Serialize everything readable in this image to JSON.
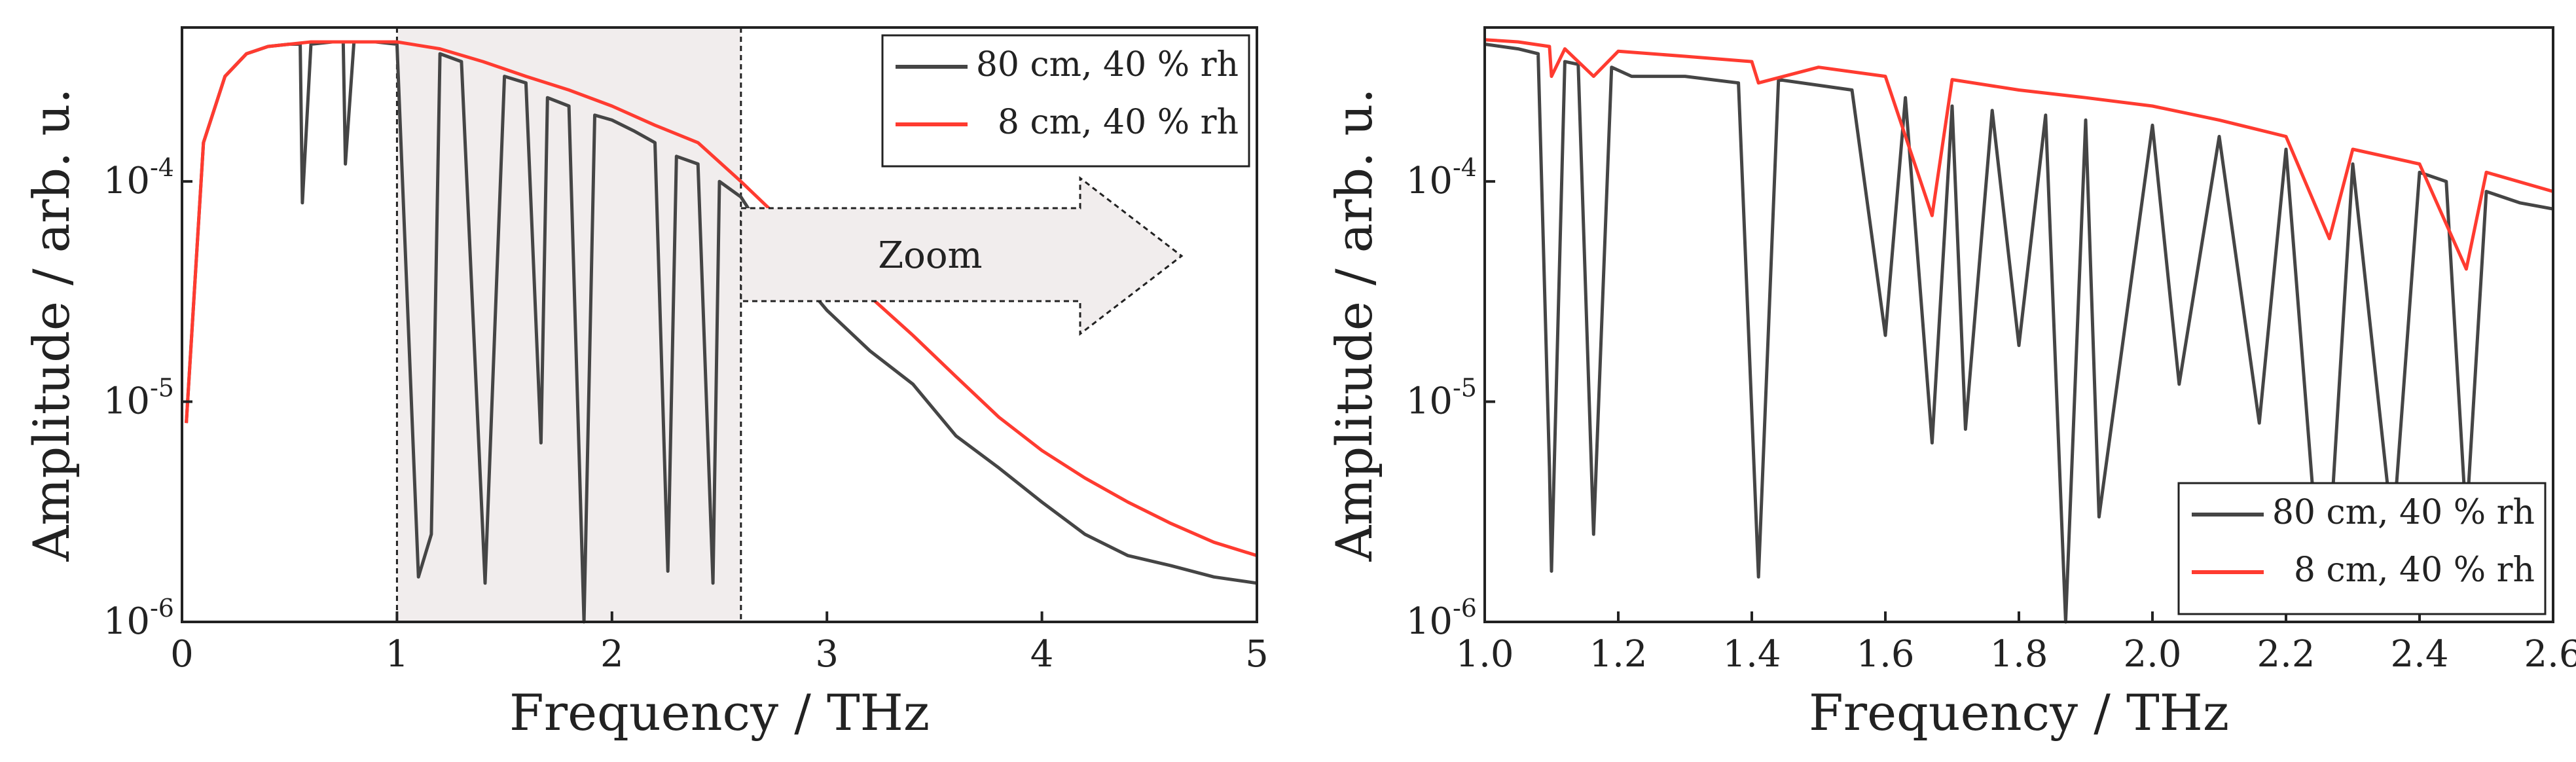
{
  "figure": {
    "zoom_label": "Zoom",
    "colors": {
      "dark": "#454545",
      "red": "#ff3b30",
      "shade": "#f1eded",
      "axis": "#222222"
    }
  },
  "chart_data": [
    {
      "type": "line",
      "panel": "left",
      "xlabel": "Frequency / THz",
      "ylabel": "Amplitude / arb. u.",
      "xlim": [
        0,
        5
      ],
      "ylim": [
        1e-06,
        0.0005
      ],
      "yscale": "log",
      "x_ticks": [
        "0",
        "1",
        "2",
        "3",
        "4",
        "5"
      ],
      "y_ticks": [
        {
          "base": "10",
          "exp": "-6"
        },
        {
          "base": "10",
          "exp": "-5"
        },
        {
          "base": "10",
          "exp": "-4"
        }
      ],
      "legend": {
        "position": "top-right",
        "entries": [
          "80 cm, 40 % rh",
          "8 cm, 40 % rh"
        ]
      },
      "annotation": {
        "text": "Zoom",
        "shaded_region": [
          1.0,
          2.6
        ]
      },
      "series": [
        {
          "name": "80 cm, 40 % rh",
          "color": "#454545",
          "x": [
            0.02,
            0.1,
            0.2,
            0.3,
            0.4,
            0.5,
            0.55,
            0.56,
            0.6,
            0.7,
            0.75,
            0.76,
            0.8,
            0.9,
            1.0,
            1.1,
            1.16,
            1.2,
            1.3,
            1.41,
            1.5,
            1.6,
            1.67,
            1.7,
            1.8,
            1.87,
            1.92,
            2.0,
            2.1,
            2.2,
            2.26,
            2.3,
            2.4,
            2.47,
            2.5,
            2.6,
            2.7,
            2.8,
            2.9,
            3.0,
            3.2,
            3.4,
            3.6,
            3.8,
            4.0,
            4.2,
            4.4,
            4.6,
            4.8,
            5.0
          ],
          "y": [
            8e-06,
            0.00015,
            0.0003,
            0.00038,
            0.00041,
            0.00042,
            0.00042,
            8e-05,
            0.00042,
            0.00043,
            0.00043,
            0.00012,
            0.00043,
            0.00043,
            0.00042,
            1.6e-06,
            2.5e-06,
            0.00038,
            0.00035,
            1.5e-06,
            0.0003,
            0.00028,
            6.5e-06,
            0.00024,
            0.00022,
            1e-06,
            0.0002,
            0.00019,
            0.00017,
            0.00015,
            1.7e-06,
            0.00013,
            0.00012,
            1.5e-06,
            0.0001,
            8.5e-05,
            6e-05,
            4.5e-05,
            3.4e-05,
            2.6e-05,
            1.7e-05,
            1.2e-05,
            7e-06,
            5e-06,
            3.5e-06,
            2.5e-06,
            2e-06,
            1.8e-06,
            1.6e-06,
            1.5e-06
          ]
        },
        {
          "name": "8 cm, 40 % rh",
          "color": "#ff3b30",
          "x": [
            0.02,
            0.1,
            0.2,
            0.3,
            0.4,
            0.5,
            0.6,
            0.7,
            0.8,
            0.9,
            1.0,
            1.2,
            1.4,
            1.6,
            1.8,
            2.0,
            2.2,
            2.4,
            2.6,
            2.8,
            3.0,
            3.2,
            3.4,
            3.6,
            3.8,
            4.0,
            4.2,
            4.4,
            4.6,
            4.8,
            5.0
          ],
          "y": [
            8e-06,
            0.00015,
            0.0003,
            0.00038,
            0.00041,
            0.00042,
            0.00043,
            0.00043,
            0.00043,
            0.00043,
            0.00043,
            0.0004,
            0.00035,
            0.0003,
            0.00026,
            0.00022,
            0.00018,
            0.00015,
            0.0001,
            6.5e-05,
            4.5e-05,
            3e-05,
            2e-05,
            1.3e-05,
            8.5e-06,
            6e-06,
            4.5e-06,
            3.5e-06,
            2.8e-06,
            2.3e-06,
            2e-06
          ]
        }
      ]
    },
    {
      "type": "line",
      "panel": "right",
      "xlabel": "Frequency / THz",
      "ylabel": "Amplitude / arb. u.",
      "xlim": [
        1.0,
        2.6
      ],
      "ylim": [
        1e-06,
        0.0005
      ],
      "yscale": "log",
      "x_ticks": [
        "1.0",
        "1.2",
        "1.4",
        "1.6",
        "1.8",
        "2.0",
        "2.2",
        "2.4",
        "2.6"
      ],
      "y_ticks": [
        {
          "base": "10",
          "exp": "-6"
        },
        {
          "base": "10",
          "exp": "-5"
        },
        {
          "base": "10",
          "exp": "-4"
        }
      ],
      "legend": {
        "position": "bottom-right",
        "entries": [
          "80 cm, 40 % rh",
          "8 cm, 40 % rh"
        ]
      },
      "series": [
        {
          "name": "80 cm, 40 % rh",
          "color": "#454545",
          "x": [
            1.0,
            1.05,
            1.08,
            1.097,
            1.1,
            1.12,
            1.14,
            1.163,
            1.19,
            1.22,
            1.3,
            1.38,
            1.41,
            1.44,
            1.55,
            1.6,
            1.63,
            1.67,
            1.7,
            1.72,
            1.76,
            1.8,
            1.84,
            1.87,
            1.9,
            1.92,
            2.0,
            2.04,
            2.1,
            2.16,
            2.2,
            2.24,
            2.265,
            2.3,
            2.36,
            2.4,
            2.44,
            2.47,
            2.5,
            2.55,
            2.6
          ],
          "y": [
            0.00042,
            0.0004,
            0.00038,
            5e-06,
            1.7e-06,
            0.00035,
            0.00034,
            2.5e-06,
            0.00033,
            0.0003,
            0.0003,
            0.00028,
            1.6e-06,
            0.00029,
            0.00026,
            2e-05,
            0.00024,
            6.5e-06,
            0.00022,
            7.5e-06,
            0.00021,
            1.8e-05,
            0.0002,
            1e-06,
            0.00019,
            3e-06,
            0.00018,
            1.2e-05,
            0.00016,
            8e-06,
            0.00014,
            4e-06,
            2.2e-06,
            0.00012,
            2.5e-06,
            0.00011,
            0.0001,
            2.8e-06,
            9e-05,
            8e-05,
            7.5e-05
          ]
        },
        {
          "name": "8 cm, 40 % rh",
          "color": "#ff3b30",
          "x": [
            1.0,
            1.05,
            1.097,
            1.1,
            1.12,
            1.163,
            1.2,
            1.3,
            1.4,
            1.41,
            1.5,
            1.6,
            1.67,
            1.7,
            1.8,
            1.9,
            2.0,
            2.1,
            2.2,
            2.265,
            2.3,
            2.4,
            2.47,
            2.5,
            2.6
          ],
          "y": [
            0.00044,
            0.00043,
            0.00041,
            0.0003,
            0.0004,
            0.0003,
            0.00039,
            0.00037,
            0.00035,
            0.00028,
            0.00033,
            0.0003,
            7e-05,
            0.00029,
            0.00026,
            0.00024,
            0.00022,
            0.00019,
            0.00016,
            5.5e-05,
            0.00014,
            0.00012,
            4e-05,
            0.00011,
            9e-05
          ]
        }
      ]
    }
  ]
}
